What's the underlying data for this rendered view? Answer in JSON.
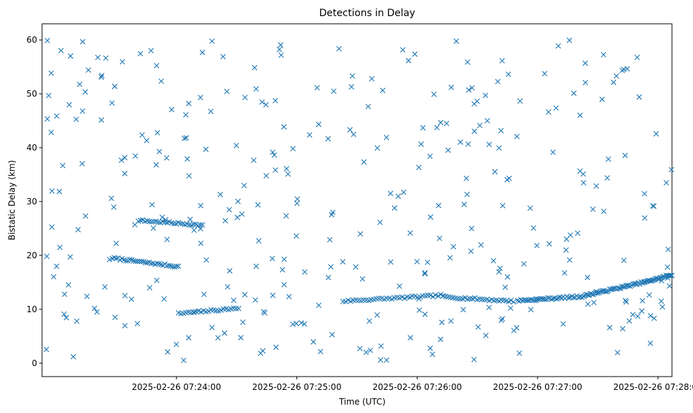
{
  "chart_data": {
    "type": "scatter",
    "title": "Detections in Delay",
    "xlabel": "Time (UTC)",
    "ylabel": "Bistatic Delay (km)",
    "marker": "x",
    "color": "#1f77b4",
    "xlim_seconds_after": [
      "2025-02-26 07:22:53",
      0,
      314
    ],
    "ylim": [
      -2.5,
      63
    ],
    "x_ticks": [
      {
        "label": "2025-02-26 07:24:00",
        "t": 67
      },
      {
        "label": "2025-02-26 07:25:00",
        "t": 127
      },
      {
        "label": "2025-02-26 07:26:00",
        "t": 187
      },
      {
        "label": "2025-02-26 07:27:00",
        "t": 247
      },
      {
        "label": "2025-02-26 07:28:00",
        "t": 307
      }
    ],
    "y_ticks": [
      0,
      10,
      20,
      30,
      40,
      50,
      60
    ],
    "grid": false,
    "tracks": [
      {
        "t_start": 35,
        "t_end": 68,
        "y_start": 19.5,
        "y_end": 17.9,
        "n": 35
      },
      {
        "t_start": 48,
        "t_end": 80,
        "y_start": 26.5,
        "y_end": 25.6,
        "n": 30
      },
      {
        "t_start": 68,
        "t_end": 98,
        "y_start": 9.2,
        "y_end": 10.2,
        "n": 25
      },
      {
        "t_start": 150,
        "t_end": 200,
        "y_start": 11.5,
        "y_end": 12.6,
        "n": 40
      },
      {
        "t_start": 200,
        "t_end": 235,
        "y_start": 12.3,
        "y_end": 11.5,
        "n": 30
      },
      {
        "t_start": 237,
        "t_end": 270,
        "y_start": 11.6,
        "y_end": 12.4,
        "n": 40
      },
      {
        "t_start": 270,
        "t_end": 300,
        "y_start": 12.5,
        "y_end": 15.0,
        "n": 45
      },
      {
        "t_start": 300,
        "t_end": 314,
        "y_start": 15.0,
        "y_end": 16.4,
        "n": 25
      }
    ],
    "clutter": {
      "t_range": [
        0,
        314
      ],
      "y_range": [
        0.5,
        60
      ],
      "n": 360,
      "seed": 7
    }
  }
}
